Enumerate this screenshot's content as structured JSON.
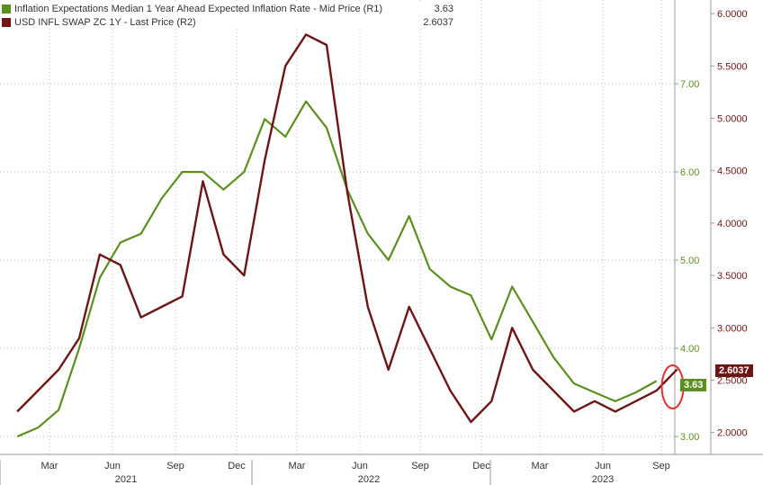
{
  "chart_data": {
    "type": "line",
    "legend": {
      "placement": "top-left",
      "entries": [
        {
          "label": "Inflation Expectations Median 1 Year Ahead Expected Inflation Rate - Mid Price (R1)",
          "value": "3.63",
          "color": "#5b8f1f"
        },
        {
          "label": "USD INFL SWAP ZC 1Y - Last Price (R2)",
          "value": "2.6037",
          "color": "#6e1515"
        }
      ]
    },
    "x_ticks_month": [
      "Mar",
      "Jun",
      "Sep",
      "Dec",
      "Mar",
      "Jun",
      "Sep",
      "Dec",
      "Mar",
      "Jun",
      "Sep"
    ],
    "x_ticks_year": [
      "2021",
      "2022",
      "2023"
    ],
    "r1_axis": {
      "ticks": [
        "3.00",
        "4.00",
        "5.00",
        "6.00",
        "7.00"
      ],
      "ylim": [
        2.95,
        7.95
      ]
    },
    "r2_axis": {
      "ticks": [
        "2.0000",
        "2.5000",
        "3.0000",
        "3.5000",
        "4.0000",
        "4.5000",
        "5.0000",
        "5.5000",
        "6.0000"
      ],
      "ylim": [
        1.92,
        6.13
      ]
    },
    "grid": true,
    "series": [
      {
        "name": "Inflation Expectations Median 1 Year Ahead Expected Inflation Rate - Mid Price (R1)",
        "axis": "R1",
        "color": "#5b8f1f",
        "x": [
          "2021-01",
          "2021-02",
          "2021-03",
          "2021-04",
          "2021-05",
          "2021-06",
          "2021-07",
          "2021-08",
          "2021-09",
          "2021-10",
          "2021-11",
          "2021-12",
          "2022-01",
          "2022-02",
          "2022-03",
          "2022-04",
          "2022-05",
          "2022-06",
          "2022-07",
          "2022-08",
          "2022-09",
          "2022-10",
          "2022-11",
          "2022-12",
          "2023-01",
          "2023-02",
          "2023-03",
          "2023-04",
          "2023-05",
          "2023-06",
          "2023-07",
          "2023-08"
        ],
        "values": [
          3.0,
          3.1,
          3.3,
          4.0,
          4.8,
          5.2,
          5.3,
          5.7,
          6.0,
          6.0,
          5.8,
          6.0,
          6.6,
          6.4,
          6.8,
          6.5,
          5.8,
          5.3,
          5.0,
          5.5,
          4.9,
          4.7,
          4.6,
          4.1,
          4.7,
          4.3,
          3.9,
          3.6,
          3.5,
          3.4,
          3.5,
          3.63
        ]
      },
      {
        "name": "USD INFL SWAP ZC 1Y - Last Price (R2)",
        "axis": "R2",
        "color": "#6e1515",
        "x": [
          "2021-01",
          "2021-02",
          "2021-03",
          "2021-04",
          "2021-05",
          "2021-06",
          "2021-07",
          "2021-08",
          "2021-09",
          "2021-10",
          "2021-11",
          "2021-12",
          "2022-01",
          "2022-02",
          "2022-03",
          "2022-04",
          "2022-05",
          "2022-06",
          "2022-07",
          "2022-08",
          "2022-09",
          "2022-10",
          "2022-11",
          "2022-12",
          "2023-01",
          "2023-02",
          "2023-03",
          "2023-04",
          "2023-05",
          "2023-06",
          "2023-07",
          "2023-08",
          "2023-09"
        ],
        "values": [
          2.2,
          2.4,
          2.6,
          2.9,
          3.7,
          3.6,
          3.1,
          3.2,
          3.3,
          4.4,
          3.7,
          3.5,
          4.6,
          5.5,
          5.8,
          5.7,
          4.3,
          3.2,
          2.6,
          3.2,
          2.8,
          2.4,
          2.1,
          2.3,
          3.0,
          2.6,
          2.4,
          2.2,
          2.3,
          2.2,
          2.3,
          2.4,
          2.6037
        ]
      }
    ],
    "annotation": "circle around latest values"
  }
}
